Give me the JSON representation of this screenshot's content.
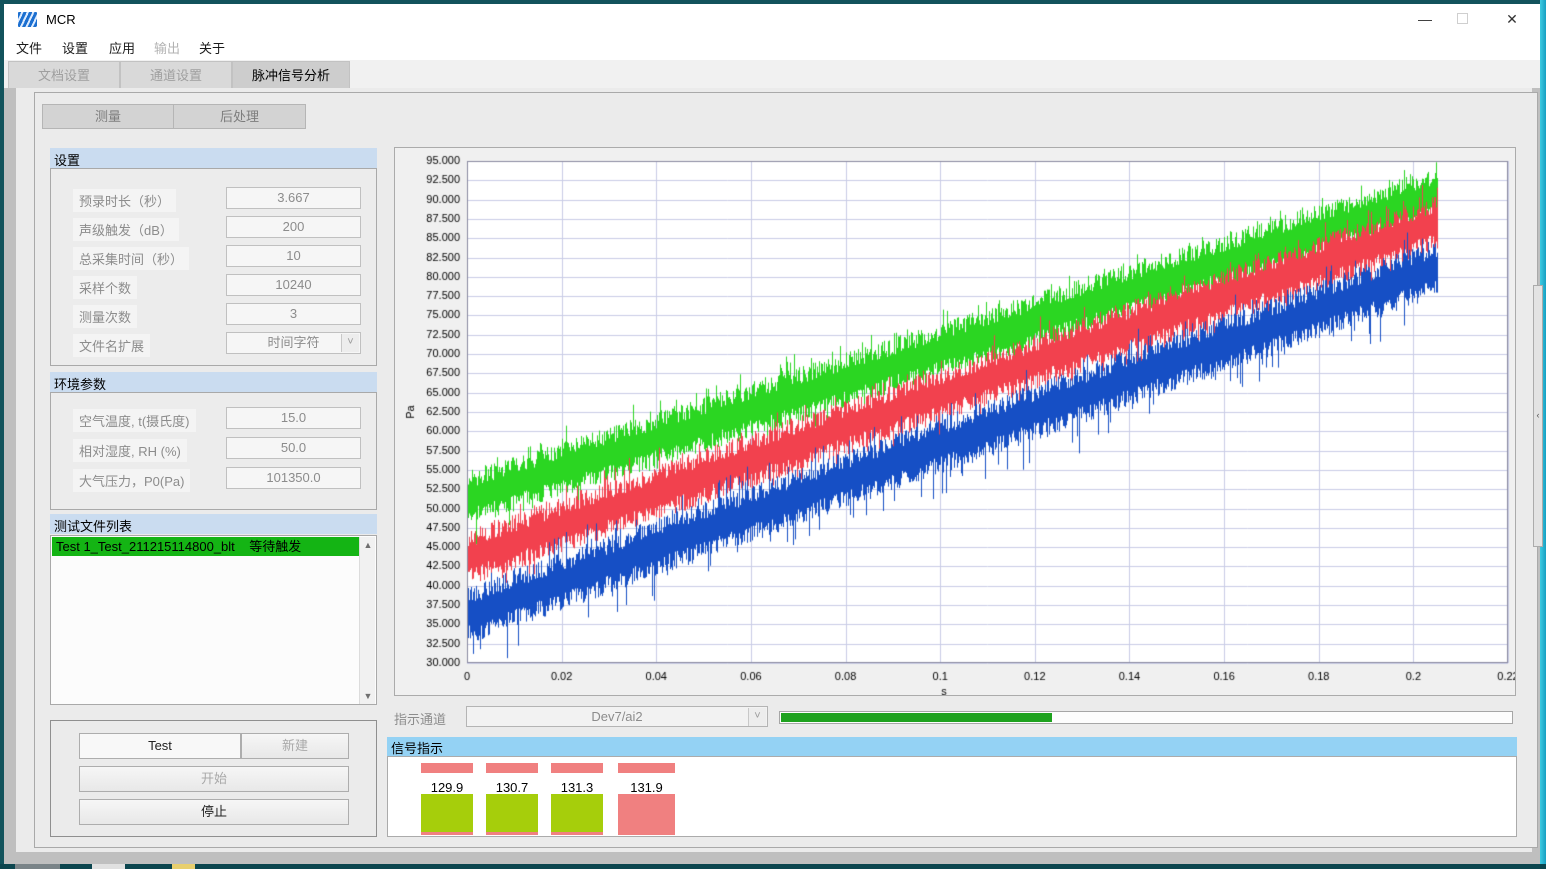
{
  "window": {
    "title": "MCR",
    "minimize": "—",
    "close": "✕"
  },
  "menu": {
    "items": [
      {
        "label": "文件",
        "enabled": true
      },
      {
        "label": "设置",
        "enabled": true
      },
      {
        "label": "应用",
        "enabled": true
      },
      {
        "label": "输出",
        "enabled": false
      },
      {
        "label": "关于",
        "enabled": true
      }
    ]
  },
  "tabs": [
    {
      "label": "文档设置",
      "active": false
    },
    {
      "label": "通道设置",
      "active": false
    },
    {
      "label": "脉冲信号分析",
      "active": true
    }
  ],
  "subtabs": [
    {
      "label": "测量"
    },
    {
      "label": "后处理"
    }
  ],
  "settings": {
    "title": "设置",
    "fields": [
      {
        "label": "预录时长（秒）",
        "value": "3.667"
      },
      {
        "label": "声级触发（dB）",
        "value": "200"
      },
      {
        "label": "总采集时间（秒）",
        "value": "10"
      },
      {
        "label": "采样个数",
        "value": "10240"
      },
      {
        "label": "测量次数",
        "value": "3"
      },
      {
        "label": "文件名扩展",
        "value": "时间字符"
      }
    ]
  },
  "environment": {
    "title": "环境参数",
    "fields": [
      {
        "label": "空气温度, t(摄氏度)",
        "value": "15.0"
      },
      {
        "label": "相对湿度, RH (%)",
        "value": "50.0"
      },
      {
        "label": "大气压力，P0(Pa)",
        "value": "101350.0"
      }
    ]
  },
  "file_list": {
    "title": "测试文件列表",
    "rows": [
      {
        "name": "Test 1_Test_211215114800_blt",
        "status": "等待触发",
        "highlight": "#14b414"
      }
    ]
  },
  "controls": {
    "test_label": "Test",
    "new_label": "新建",
    "start_label": "开始",
    "stop_label": "停止"
  },
  "indicator": {
    "label": "指示通道",
    "channel": "Dev7/ai2",
    "progress_percent": 37,
    "progress_color": "#1ea21e"
  },
  "signal": {
    "title": "信号指示",
    "colors": {
      "green": "#a6ce0b",
      "red": "#f08080"
    },
    "items": [
      {
        "value": "129.9",
        "state": "green"
      },
      {
        "value": "130.7",
        "state": "green"
      },
      {
        "value": "131.3",
        "state": "green"
      },
      {
        "value": "131.9",
        "state": "red"
      }
    ]
  },
  "chart_data": {
    "type": "line",
    "title": "",
    "xlabel": "s",
    "ylabel": "Pa",
    "xlim": [
      0,
      0.22
    ],
    "ylim": [
      30,
      95
    ],
    "x_tick_step": 0.02,
    "y_tick_step": 2.5,
    "grid": true,
    "grid_color": "#c9cce6",
    "frame_color": "#8a8aa0",
    "x_data_end": 0.205,
    "description": "Three dense noisy pressure-signal bands rising linearly with time; band half-width about 2.5 Pa with random spikes",
    "series": [
      {
        "name": "channel-green",
        "color": "#2bd622",
        "y_start": 51.3,
        "y_end": 90.6,
        "band_half_width": 2.4,
        "spike_amplitude": 2.2
      },
      {
        "name": "channel-red",
        "color": "#f2414e",
        "y_start": 43.6,
        "y_end": 87.0,
        "band_half_width": 2.4,
        "spike_amplitude": 2.4
      },
      {
        "name": "channel-blue",
        "color": "#164fc5",
        "y_start": 36.2,
        "y_end": 81.2,
        "band_half_width": 2.5,
        "spike_amplitude": 2.9
      }
    ]
  }
}
